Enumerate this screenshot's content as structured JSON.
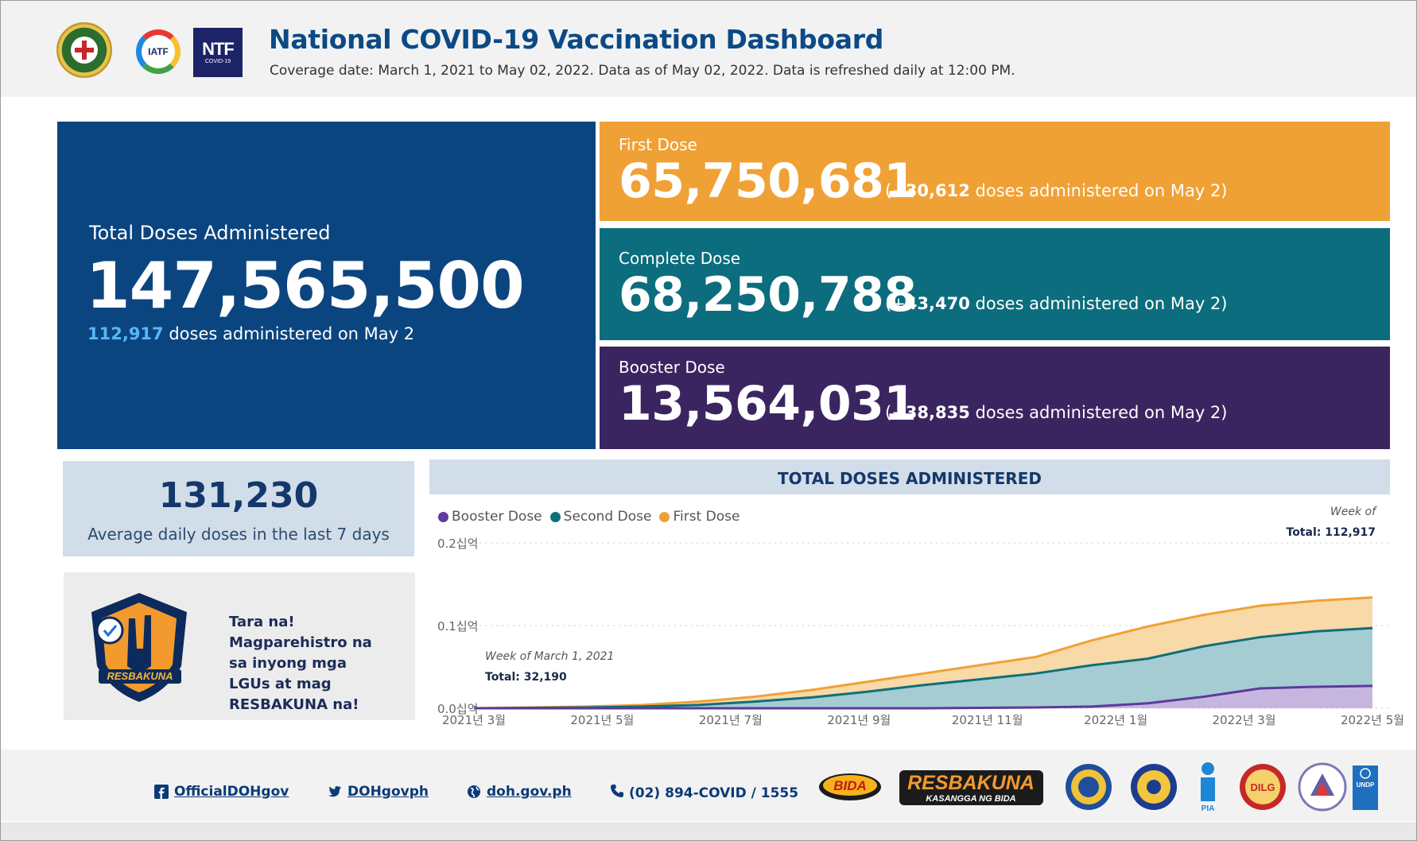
{
  "header": {
    "title": "National COVID-19 Vaccination Dashboard",
    "subtitle": "Coverage date: March 1, 2021 to May 02, 2022. Data as of May 02, 2022. Data is refreshed daily at 12:00 PM.",
    "logos": {
      "iatf": "IATF",
      "ntf_main": "NTF",
      "ntf_sub": "COVID-19"
    }
  },
  "total": {
    "label": "Total Doses Administered",
    "value": "147,565,500",
    "daily_value": "112,917",
    "daily_text": "doses administered on May 2"
  },
  "first_dose": {
    "label": "First Dose",
    "value": "65,750,681",
    "open": "(+",
    "delta": "30,612",
    "close": "doses administered on May 2)",
    "color": "#f0a136"
  },
  "complete_dose": {
    "label": "Complete Dose",
    "value": "68,250,788",
    "open": "(+",
    "delta": "43,470",
    "close": "doses administered on May 2)",
    "color": "#0b6d7d"
  },
  "booster_dose": {
    "label": "Booster Dose",
    "value": "13,564,031",
    "open": "(+",
    "delta": "38,835",
    "close": "doses administered on May 2)",
    "color": "#3b2561"
  },
  "average": {
    "value": "131,230",
    "label": "Average daily doses in the last 7 days"
  },
  "promo": {
    "text": "Tara na! Magparehistro na sa inyong mga LGUs at mag RESBAKUNA na!",
    "badge_text": "RESBAKUNA"
  },
  "chart_data": {
    "type": "area",
    "title": "TOTAL DOSES ADMINISTERED",
    "legend": [
      {
        "name": "Booster Dose",
        "color": "#5d3a9b"
      },
      {
        "name": "Second Dose",
        "color": "#0f6f78"
      },
      {
        "name": "First Dose",
        "color": "#f0a136"
      }
    ],
    "y_ticks": [
      "0.0십억",
      "0.1십억",
      "0.2십억"
    ],
    "ylim": [
      0,
      0.2
    ],
    "x_ticks": [
      "2021년 3월",
      "2021년 5월",
      "2021년 7월",
      "2021년 9월",
      "2021년 11월",
      "2022년 1월",
      "2022년 3월",
      "2022년 5월"
    ],
    "x": [
      0,
      1,
      2,
      3,
      4,
      5,
      6,
      7,
      8,
      9,
      10,
      11,
      12,
      13,
      14,
      15,
      16
    ],
    "series": [
      {
        "name": "First Dose",
        "values": [
          0.0,
          0.001,
          0.002,
          0.004,
          0.008,
          0.014,
          0.022,
          0.032,
          0.042,
          0.052,
          0.062,
          0.082,
          0.099,
          0.113,
          0.124,
          0.13,
          0.134
        ]
      },
      {
        "name": "Second Dose",
        "values": [
          0.0,
          0.0005,
          0.001,
          0.002,
          0.004,
          0.008,
          0.013,
          0.02,
          0.028,
          0.035,
          0.042,
          0.052,
          0.06,
          0.075,
          0.086,
          0.093,
          0.097
        ]
      },
      {
        "name": "Booster Dose",
        "values": [
          0.0,
          0.0,
          0.0,
          0.0,
          0.0,
          0.0,
          0.0,
          0.0,
          0.0,
          0.0005,
          0.001,
          0.002,
          0.006,
          0.014,
          0.024,
          0.026,
          0.027
        ]
      }
    ],
    "annotations": {
      "start_week": "Week of March 1, 2021",
      "start_total": "Total: 32,190",
      "end_week": "Week of",
      "end_total": "Total: 112,917"
    }
  },
  "footer": {
    "facebook": "OfficialDOHgov",
    "twitter": "DOHgovph",
    "website": "doh.gov.ph",
    "phone": "(02) 894-COVID / 1555",
    "logo_bida": "BIDA",
    "logo_resbakuna": "RESBAKUNA",
    "logo_resbakuna_sub": "KASANGGA NG BIDA",
    "logo_pia": "PIA",
    "logo_dilg": "DILG",
    "logo_undp": "UNDP"
  }
}
